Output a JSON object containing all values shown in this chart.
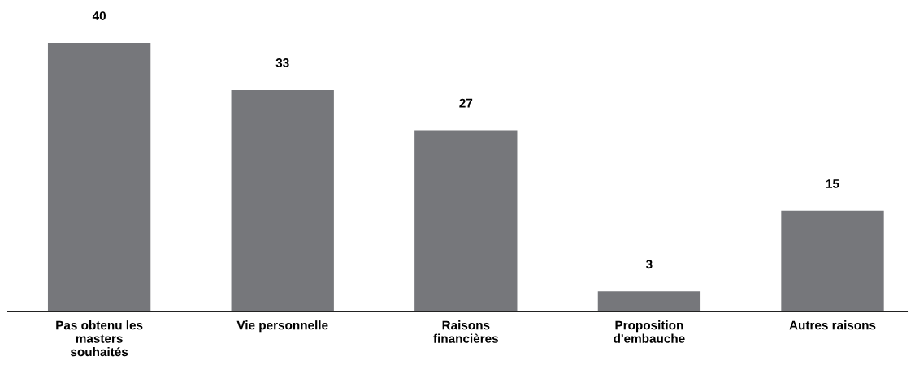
{
  "chart_data": {
    "type": "bar",
    "categories": [
      "Pas obtenu les\nmasters\nsouhaités",
      "Vie personnelle",
      "Raisons\nfinancières",
      "Proposition\nd'embauche",
      "Autres raisons"
    ],
    "values": [
      40,
      33,
      27,
      3,
      15
    ],
    "color": "#76777b",
    "data_labels": true,
    "tick_labels": "x"
  }
}
